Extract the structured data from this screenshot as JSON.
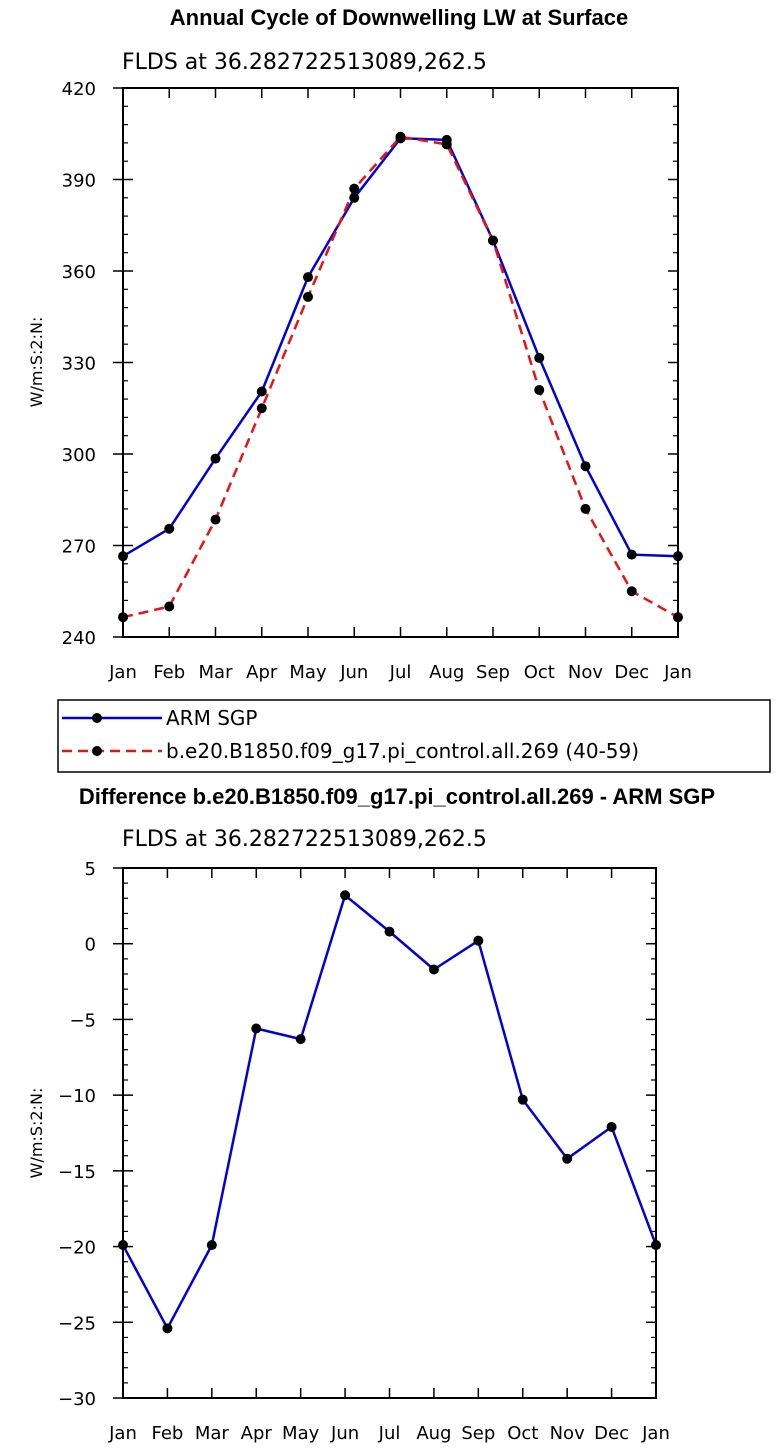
{
  "chart_data": [
    {
      "type": "line",
      "title": "Annual Cycle of Downwelling LW at Surface",
      "subtitle": "FLDS at 36.282722513089,262.5",
      "xlabel": "",
      "ylabel": "W/m:S:2:N:",
      "categories": [
        "Jan",
        "Feb",
        "Mar",
        "Apr",
        "May",
        "Jun",
        "Jul",
        "Aug",
        "Sep",
        "Oct",
        "Nov",
        "Dec",
        "Jan"
      ],
      "ylim": [
        240,
        420
      ],
      "yticks": [
        240,
        270,
        300,
        330,
        360,
        390,
        420
      ],
      "series": [
        {
          "name": "ARM SGP",
          "color": "#0000dd",
          "dash": "solid",
          "values": [
            266.5,
            275.5,
            298.5,
            320.5,
            358,
            384,
            403.5,
            403,
            370,
            331.5,
            296,
            267,
            266.5
          ]
        },
        {
          "name": "b.e20.B1850.f09_g17.pi_control.all.269 (40-59)",
          "color": "#ee1111",
          "dash": "dashed",
          "values": [
            246.5,
            250,
            278.5,
            315,
            351.5,
            387,
            404,
            401.5,
            370,
            321,
            282,
            255,
            246.5
          ]
        }
      ]
    },
    {
      "type": "line",
      "title": "Difference b.e20.B1850.f09_g17.pi_control.all.269 - ARM SGP",
      "subtitle": "FLDS at 36.282722513089,262.5",
      "xlabel": "",
      "ylabel": "W/m:S:2:N:",
      "categories": [
        "Jan",
        "Feb",
        "Mar",
        "Apr",
        "May",
        "Jun",
        "Jul",
        "Aug",
        "Sep",
        "Oct",
        "Nov",
        "Dec",
        "Jan"
      ],
      "ylim": [
        -30,
        5
      ],
      "yticks": [
        -30,
        -25,
        -20,
        -15,
        -10,
        -5,
        0,
        5
      ],
      "series": [
        {
          "name": "Difference",
          "color": "#0000dd",
          "dash": "solid",
          "values": [
            -19.9,
            -25.4,
            -19.9,
            -5.6,
            -6.3,
            3.2,
            0.8,
            -1.7,
            0.2,
            -10.3,
            -14.2,
            -12.1,
            -19.9
          ]
        }
      ]
    }
  ]
}
